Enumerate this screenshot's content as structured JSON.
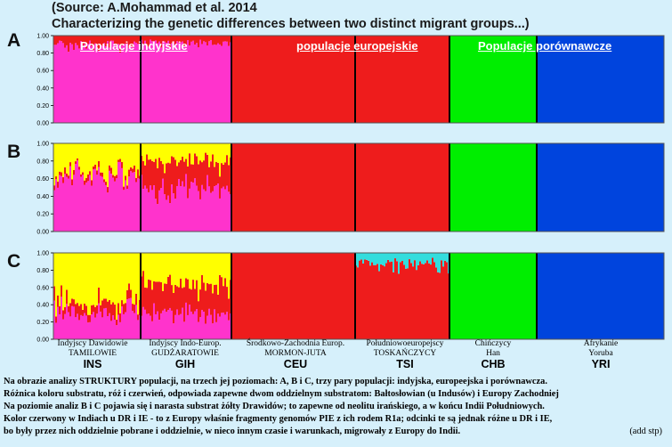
{
  "header": {
    "source": "(Source: A.Mohammad et al. 2014",
    "subtitle": "Characterizing the genetic differences between two distinct migrant groups...)"
  },
  "group_titles": {
    "indian": "Populacje  indyjskie",
    "european": "populacje  europejskie",
    "comparative": "Populacje  porównawcze"
  },
  "colors": {
    "pink": "#ff33cc",
    "red": "#ee1c1c",
    "yellow": "#ffff00",
    "green": "#00ee00",
    "blue": "#0044dd",
    "cyan": "#33dddd",
    "background": "#d6f0fb"
  },
  "populations": [
    {
      "code": "INS",
      "line1": "Indyjscy Dawidowie",
      "line2": "TAMILOWIE"
    },
    {
      "code": "GIH",
      "line1": "Indyjscy Indo-Europ.",
      "line2": "GUDŻARATOWIE"
    },
    {
      "code": "CEU",
      "line1": "Środkowo-Zachodnia Europ.",
      "line2": "MORMON-JUTA"
    },
    {
      "code": "TSI",
      "line1": "Południowoeuropejscy",
      "line2": "TOSKAŃCZYCY"
    },
    {
      "code": "CHB",
      "line1": "Chińczycy",
      "line2": "Han"
    },
    {
      "code": "YRI",
      "line1": "Afrykanie",
      "line2": "Yoruba"
    }
  ],
  "chart_data": [
    {
      "type": "structure-bar",
      "panel": "A",
      "yticks": [
        "1.00",
        "0.80",
        "0.60",
        "0.40",
        "0.20",
        "0.00"
      ],
      "groups": [
        "INS",
        "GIH",
        "CEU",
        "TSI",
        "CHB",
        "YRI"
      ],
      "series": [
        {
          "color": "pink",
          "values": [
            0.9,
            0.92,
            0.0,
            0.0,
            0.0,
            0.0
          ]
        },
        {
          "color": "red",
          "values": [
            0.1,
            0.08,
            1.0,
            1.0,
            0.0,
            0.0
          ]
        },
        {
          "color": "green",
          "values": [
            0.0,
            0.0,
            0.0,
            0.0,
            1.0,
            0.0
          ]
        },
        {
          "color": "blue",
          "values": [
            0.0,
            0.0,
            0.0,
            0.0,
            0.0,
            1.0
          ]
        }
      ]
    },
    {
      "type": "structure-bar",
      "panel": "B",
      "yticks": [
        "1.00",
        "0.80",
        "0.60",
        "0.40",
        "0.20",
        "0.00"
      ],
      "groups": [
        "INS",
        "GIH",
        "CEU",
        "TSI",
        "CHB",
        "YRI"
      ],
      "series": [
        {
          "color": "pink",
          "values": [
            0.62,
            0.48,
            0.0,
            0.0,
            0.0,
            0.0
          ]
        },
        {
          "color": "red",
          "values": [
            0.05,
            0.32,
            1.0,
            1.0,
            0.0,
            0.0
          ]
        },
        {
          "color": "yellow",
          "values": [
            0.33,
            0.2,
            0.0,
            0.0,
            0.0,
            0.0
          ]
        },
        {
          "color": "green",
          "values": [
            0.0,
            0.0,
            0.0,
            0.0,
            1.0,
            0.0
          ]
        },
        {
          "color": "blue",
          "values": [
            0.0,
            0.0,
            0.0,
            0.0,
            0.0,
            1.0
          ]
        }
      ]
    },
    {
      "type": "structure-bar",
      "panel": "C",
      "yticks": [
        "1.00",
        "0.80",
        "0.60",
        "0.40",
        "0.20",
        "0.00"
      ],
      "groups": [
        "INS",
        "GIH",
        "CEU",
        "TSI",
        "CHB",
        "YRI"
      ],
      "series": [
        {
          "color": "pink",
          "values": [
            0.3,
            0.3,
            0.0,
            0.0,
            0.0,
            0.0
          ]
        },
        {
          "color": "red",
          "values": [
            0.12,
            0.35,
            1.0,
            0.88,
            0.0,
            0.0
          ]
        },
        {
          "color": "yellow",
          "values": [
            0.58,
            0.35,
            0.0,
            0.0,
            0.0,
            0.0
          ]
        },
        {
          "color": "cyan",
          "values": [
            0.0,
            0.0,
            0.0,
            0.12,
            0.0,
            0.0
          ]
        },
        {
          "color": "green",
          "values": [
            0.0,
            0.0,
            0.0,
            0.0,
            1.0,
            0.0
          ]
        },
        {
          "color": "blue",
          "values": [
            0.0,
            0.0,
            0.0,
            0.0,
            0.0,
            1.0
          ]
        }
      ]
    }
  ],
  "notes": [
    "Na obrazie analizy  STRUKTURY populacji, na trzech jej  poziomach: A, B i C, trzy pary populacji: indyjska, europeejska i porównawcza.",
    "Różnica koloru substratu, róż i czerwień, odpowiada zapewne dwom oddzielnym substratom:  Bałtosłowian (u Indusów) i Europy Zachodniej",
    "Na poziomie analiz B i C pojawia się i narasta substrat  żółty Drawidów; to zapewne od neolitu irańskiego, a w końcu Indii Południowych.",
    "Kolor czerwony w Indiach u  DR i IE  - to z Europy właśnie fragmenty genomów PIE z ich rodem R1a; odcinki te są jednak różne u DR i IE,",
    "bo były przez nich  oddzielnie pobrane i oddzielnie, w nieco innym czasie i warunkach,  migrowały z Europy do Indii."
  ],
  "note_tag": "(add stp)"
}
